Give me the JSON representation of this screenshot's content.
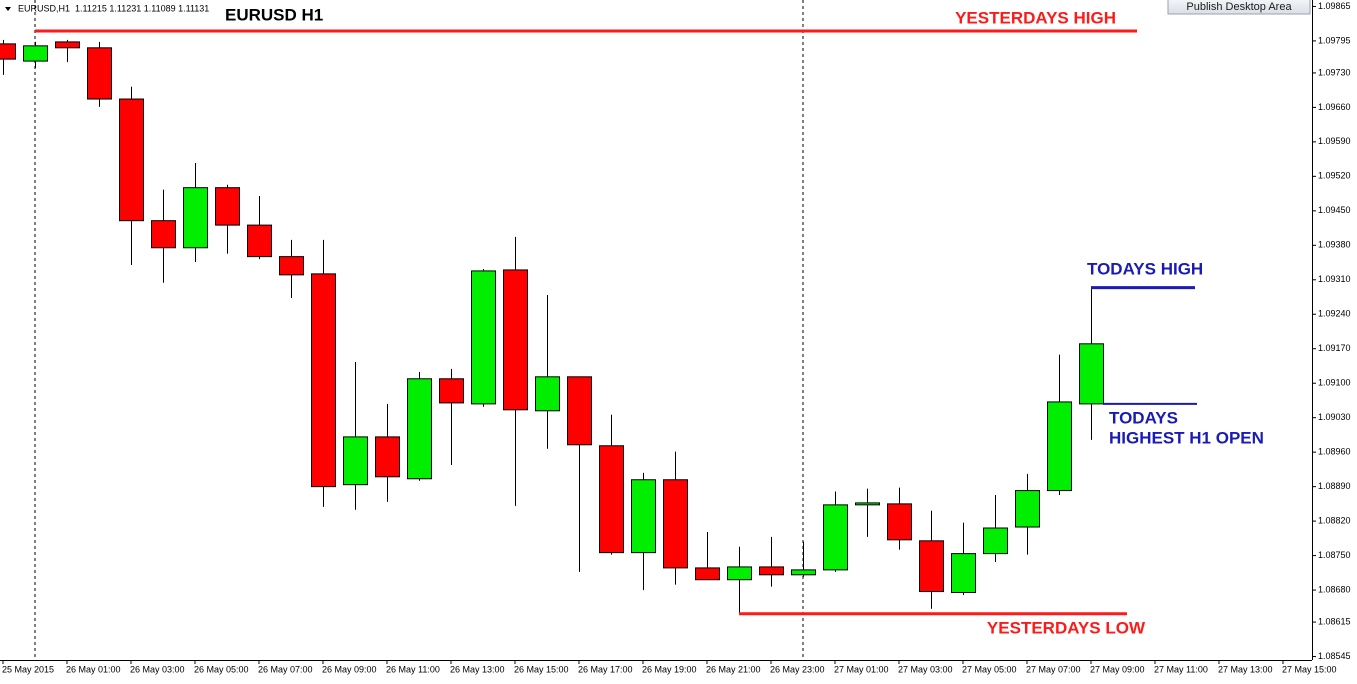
{
  "toolbar": {
    "button": "Publish Desktop Area"
  },
  "chart_data": {
    "type": "candlestick",
    "title": "EURUSD H1",
    "symbol_info": "EURUSD,H1  1.11215 1.11231 1.11089 1.11131",
    "categories": [
      "25 May 2015",
      null,
      "26 May 01:00",
      null,
      "26 May 03:00",
      null,
      "26 May 05:00",
      null,
      "26 May 07:00",
      null,
      "26 May 09:00",
      null,
      "26 May 11:00",
      null,
      "26 May 13:00",
      null,
      "26 May 15:00",
      null,
      "26 May 17:00",
      null,
      "26 May 19:00",
      null,
      "26 May 21:00",
      null,
      "26 May 23:00",
      null,
      "27 May 01:00",
      null,
      "27 May 03:00",
      null,
      "27 May 05:00",
      null,
      "27 May 07:00",
      null,
      "27 May 09:00",
      null,
      "27 May 11:00",
      null,
      "27 May 13:00",
      null,
      "27 May 15:00"
    ],
    "open": [
      1.09789,
      1.09754,
      1.09793,
      1.09781,
      1.09677,
      1.0943,
      1.09375,
      1.09497,
      1.09421,
      1.09357,
      1.09322,
      1.08894,
      1.08991,
      1.08906,
      1.09109,
      1.09058,
      1.0933,
      1.09044,
      1.09113,
      1.08973,
      1.08756,
      1.08904,
      1.08725,
      1.08701,
      1.08727,
      1.08711,
      1.08721,
      1.08853,
      1.08855,
      1.0878,
      1.08675,
      1.08754,
      1.08808,
      1.08882,
      1.09058,
      null,
      null,
      null,
      null,
      null,
      null
    ],
    "high": [
      1.09797,
      1.09793,
      1.09797,
      1.09793,
      1.09702,
      1.09493,
      1.09547,
      1.09503,
      1.0948,
      1.09391,
      1.09391,
      1.09143,
      1.09058,
      1.09123,
      1.09129,
      1.09332,
      1.09397,
      1.09279,
      1.09113,
      1.09036,
      1.08918,
      1.08961,
      1.08798,
      1.08768,
      1.08788,
      1.08778,
      1.0888,
      1.08886,
      1.08888,
      1.08841,
      1.08817,
      1.08873,
      1.08916,
      1.09158,
      1.09292,
      null,
      null,
      null,
      null,
      null,
      null
    ],
    "low": [
      1.09726,
      1.0974,
      1.09752,
      1.09661,
      1.0934,
      1.09304,
      1.09346,
      1.09363,
      1.09352,
      1.09273,
      1.08849,
      1.08843,
      1.08859,
      1.08902,
      1.08934,
      1.09052,
      1.08851,
      1.08967,
      1.08717,
      1.08752,
      1.0868,
      1.08691,
      1.08701,
      1.0863,
      1.08687,
      1.08707,
      1.08717,
      1.08788,
      1.08762,
      1.08642,
      1.0867,
      1.08737,
      1.08752,
      1.08873,
      1.08985,
      null,
      null,
      null,
      null,
      null,
      null
    ],
    "close": [
      1.09758,
      1.09785,
      1.09781,
      1.09677,
      1.0943,
      1.09375,
      1.09497,
      1.09421,
      1.09357,
      1.0932,
      1.0889,
      1.08991,
      1.0891,
      1.09109,
      1.0906,
      1.09328,
      1.09046,
      1.09113,
      1.08975,
      1.08756,
      1.08904,
      1.08725,
      1.08701,
      1.08727,
      1.08711,
      1.08721,
      1.08853,
      1.08857,
      1.08782,
      1.08677,
      1.08754,
      1.08806,
      1.08882,
      1.09062,
      1.0918,
      null,
      null,
      null,
      null,
      null,
      null
    ],
    "up_color": "#00ee00",
    "down_color": "#ff0000",
    "ylim": [
      1.08538,
      1.09874
    ],
    "yticks": [
      1.08545,
      1.08615,
      {
        "value": 1.0868,
        "label": "1.08680"
      },
      {
        "value": 1.0875,
        "label": "1.08750"
      },
      {
        "value": 1.0882,
        "label": "1.08820"
      },
      {
        "value": 1.0889,
        "label": "1.08890"
      },
      {
        "value": 1.0896,
        "label": "1.08960"
      },
      {
        "value": 1.0903,
        "label": "1.09030"
      },
      {
        "value": 1.091,
        "label": "1.09100"
      },
      {
        "value": 1.0917,
        "label": "1.09170"
      },
      {
        "value": 1.0924,
        "label": "1.09240"
      },
      {
        "value": 1.0931,
        "label": "1.09310"
      },
      {
        "value": 1.0938,
        "label": "1.09380"
      },
      {
        "value": 1.0945,
        "label": "1.09450"
      },
      {
        "value": 1.0952,
        "label": "1.09520"
      },
      {
        "value": 1.0959,
        "label": "1.09590"
      },
      {
        "value": 1.0966,
        "label": "1.09660"
      },
      {
        "value": 1.0973,
        "label": "1.09730"
      },
      1.09795,
      1.09865
    ],
    "annotations": [
      {
        "text": "YESTERDAYS HIGH",
        "value": 1.09815,
        "color": "#ff1a1a"
      },
      {
        "text": "YESTERDAYS LOW",
        "value": 1.08632,
        "color": "#ff1a1a"
      },
      {
        "text": "TODAYS HIGH",
        "value": 1.09294,
        "color": "#1a1ab4"
      },
      {
        "text": [
          "TODAYS",
          "HIGHEST H1 OPEN"
        ],
        "value": 1.09058,
        "color": "#1a1ab4"
      }
    ]
  }
}
